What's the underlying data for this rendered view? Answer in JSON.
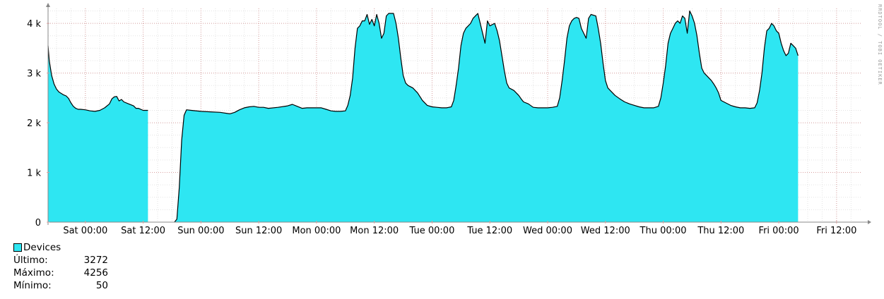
{
  "chart_data": {
    "type": "area",
    "title": "",
    "watermark": "RRDTOOL / TOBI OETIKER",
    "x_tick_labels": [
      "Sat 00:00",
      "Sat 12:00",
      "Sun 00:00",
      "Sun 12:00",
      "Mon 00:00",
      "Mon 12:00",
      "Tue 00:00",
      "Tue 12:00",
      "Wed 00:00",
      "Wed 12:00",
      "Thu 00:00",
      "Thu 12:00",
      "Fri 00:00",
      "Fri 12:00"
    ],
    "x_tick_hours": [
      0,
      12,
      24,
      36,
      48,
      60,
      72,
      84,
      96,
      108,
      120,
      132,
      144,
      156
    ],
    "xlim_hours": [
      -7.75,
      161.3
    ],
    "y_ticks": [
      0,
      1000,
      2000,
      3000,
      4000
    ],
    "y_tick_labels": [
      "0",
      "1 k",
      "2 k",
      "3 k",
      "4 k"
    ],
    "ylim": [
      0,
      4300
    ],
    "grid": true,
    "series": [
      {
        "name": "Devices",
        "color": "#2ee6f2",
        "gaps_hours": [
          [
            13.0,
            18.5
          ]
        ],
        "points": [
          [
            -7.75,
            3550
          ],
          [
            -7.5,
            3250
          ],
          [
            -7,
            2950
          ],
          [
            -6.5,
            2780
          ],
          [
            -6,
            2680
          ],
          [
            -5.5,
            2620
          ],
          [
            -5,
            2590
          ],
          [
            -4.5,
            2560
          ],
          [
            -4,
            2540
          ],
          [
            -3.5,
            2490
          ],
          [
            -3,
            2400
          ],
          [
            -2.5,
            2330
          ],
          [
            -2,
            2290
          ],
          [
            -1.5,
            2270
          ],
          [
            -1,
            2270
          ],
          [
            0,
            2260
          ],
          [
            1,
            2240
          ],
          [
            2,
            2230
          ],
          [
            3,
            2250
          ],
          [
            4,
            2300
          ],
          [
            5,
            2380
          ],
          [
            5.5,
            2480
          ],
          [
            6,
            2520
          ],
          [
            6.5,
            2530
          ],
          [
            7,
            2440
          ],
          [
            7.5,
            2470
          ],
          [
            8,
            2420
          ],
          [
            9,
            2380
          ],
          [
            10,
            2340
          ],
          [
            10.5,
            2290
          ],
          [
            11,
            2290
          ],
          [
            12,
            2250
          ],
          [
            13,
            2250
          ],
          [
            18.5,
            0
          ],
          [
            19,
            60
          ],
          [
            19.5,
            700
          ],
          [
            20,
            1650
          ],
          [
            20.5,
            2150
          ],
          [
            21,
            2260
          ],
          [
            22,
            2250
          ],
          [
            24,
            2230
          ],
          [
            26,
            2220
          ],
          [
            28,
            2210
          ],
          [
            30,
            2180
          ],
          [
            31,
            2210
          ],
          [
            32,
            2260
          ],
          [
            33,
            2300
          ],
          [
            34,
            2320
          ],
          [
            35,
            2330
          ],
          [
            36,
            2310
          ],
          [
            37,
            2310
          ],
          [
            38,
            2290
          ],
          [
            40,
            2310
          ],
          [
            42,
            2340
          ],
          [
            43,
            2370
          ],
          [
            44,
            2330
          ],
          [
            45,
            2290
          ],
          [
            46,
            2300
          ],
          [
            47,
            2300
          ],
          [
            48,
            2300
          ],
          [
            49,
            2300
          ],
          [
            50,
            2270
          ],
          [
            51,
            2240
          ],
          [
            52,
            2230
          ],
          [
            53,
            2230
          ],
          [
            54,
            2240
          ],
          [
            54.5,
            2350
          ],
          [
            55,
            2550
          ],
          [
            55.5,
            2900
          ],
          [
            56,
            3500
          ],
          [
            56.5,
            3900
          ],
          [
            57,
            3950
          ],
          [
            57.5,
            4050
          ],
          [
            58,
            4050
          ],
          [
            58.5,
            4180
          ],
          [
            59,
            3980
          ],
          [
            59.5,
            4080
          ],
          [
            60,
            3950
          ],
          [
            60.5,
            4180
          ],
          [
            61,
            4000
          ],
          [
            61.5,
            3700
          ],
          [
            62,
            3800
          ],
          [
            62.5,
            4150
          ],
          [
            63,
            4200
          ],
          [
            64,
            4200
          ],
          [
            64.5,
            4000
          ],
          [
            65,
            3700
          ],
          [
            65.5,
            3300
          ],
          [
            66,
            2950
          ],
          [
            66.5,
            2800
          ],
          [
            67,
            2750
          ],
          [
            68,
            2700
          ],
          [
            69,
            2600
          ],
          [
            70,
            2450
          ],
          [
            71,
            2350
          ],
          [
            72,
            2320
          ],
          [
            73,
            2310
          ],
          [
            74,
            2300
          ],
          [
            75,
            2300
          ],
          [
            76,
            2320
          ],
          [
            76.5,
            2450
          ],
          [
            77,
            2750
          ],
          [
            77.5,
            3100
          ],
          [
            78,
            3550
          ],
          [
            78.5,
            3800
          ],
          [
            79,
            3900
          ],
          [
            79.5,
            3950
          ],
          [
            80,
            4000
          ],
          [
            80.5,
            4100
          ],
          [
            81,
            4150
          ],
          [
            81.5,
            4200
          ],
          [
            82,
            4000
          ],
          [
            82.5,
            3800
          ],
          [
            83,
            3600
          ],
          [
            83.5,
            4050
          ],
          [
            84,
            3950
          ],
          [
            85,
            4000
          ],
          [
            85.5,
            3850
          ],
          [
            86,
            3650
          ],
          [
            86.5,
            3350
          ],
          [
            87,
            3050
          ],
          [
            87.5,
            2800
          ],
          [
            88,
            2700
          ],
          [
            89,
            2650
          ],
          [
            90,
            2550
          ],
          [
            90.5,
            2480
          ],
          [
            91,
            2420
          ],
          [
            92,
            2380
          ],
          [
            93,
            2310
          ],
          [
            94,
            2300
          ],
          [
            95,
            2300
          ],
          [
            96,
            2300
          ],
          [
            97,
            2310
          ],
          [
            98,
            2330
          ],
          [
            98.5,
            2500
          ],
          [
            99,
            2850
          ],
          [
            99.5,
            3250
          ],
          [
            100,
            3700
          ],
          [
            100.5,
            3950
          ],
          [
            101,
            4050
          ],
          [
            101.5,
            4100
          ],
          [
            102,
            4120
          ],
          [
            102.5,
            4100
          ],
          [
            103,
            3900
          ],
          [
            103.5,
            3800
          ],
          [
            104,
            3700
          ],
          [
            104.5,
            4100
          ],
          [
            105,
            4180
          ],
          [
            106,
            4150
          ],
          [
            106.5,
            3900
          ],
          [
            107,
            3600
          ],
          [
            107.5,
            3200
          ],
          [
            108,
            2850
          ],
          [
            108.5,
            2700
          ],
          [
            109,
            2650
          ],
          [
            110,
            2550
          ],
          [
            111,
            2480
          ],
          [
            112,
            2420
          ],
          [
            113,
            2380
          ],
          [
            114,
            2350
          ],
          [
            115,
            2320
          ],
          [
            116,
            2300
          ],
          [
            117,
            2300
          ],
          [
            118,
            2300
          ],
          [
            119,
            2330
          ],
          [
            119.5,
            2500
          ],
          [
            120,
            2800
          ],
          [
            120.5,
            3150
          ],
          [
            121,
            3600
          ],
          [
            121.5,
            3800
          ],
          [
            122,
            3900
          ],
          [
            122.5,
            4000
          ],
          [
            123,
            4050
          ],
          [
            123.5,
            4000
          ],
          [
            124,
            4150
          ],
          [
            124.5,
            4100
          ],
          [
            125,
            3800
          ],
          [
            125.5,
            4250
          ],
          [
            126,
            4150
          ],
          [
            126.5,
            4000
          ],
          [
            127,
            3750
          ],
          [
            127.5,
            3400
          ],
          [
            128,
            3100
          ],
          [
            128.5,
            3000
          ],
          [
            129,
            2950
          ],
          [
            130,
            2850
          ],
          [
            130.5,
            2780
          ],
          [
            131,
            2700
          ],
          [
            131.5,
            2600
          ],
          [
            132,
            2450
          ],
          [
            133,
            2400
          ],
          [
            134,
            2350
          ],
          [
            135,
            2320
          ],
          [
            136,
            2300
          ],
          [
            137,
            2300
          ],
          [
            138,
            2290
          ],
          [
            139,
            2300
          ],
          [
            139.5,
            2400
          ],
          [
            140,
            2650
          ],
          [
            140.5,
            3000
          ],
          [
            141,
            3500
          ],
          [
            141.5,
            3850
          ],
          [
            142,
            3900
          ],
          [
            142.5,
            4000
          ],
          [
            143,
            3950
          ],
          [
            143.5,
            3850
          ],
          [
            144,
            3800
          ],
          [
            144.5,
            3600
          ],
          [
            145,
            3450
          ],
          [
            145.5,
            3350
          ],
          [
            146,
            3400
          ],
          [
            146.5,
            3600
          ],
          [
            147,
            3550
          ],
          [
            147.5,
            3500
          ],
          [
            148,
            3350
          ]
        ]
      }
    ],
    "legend": {
      "series_name": "Devices",
      "stats": [
        {
          "label": "Último:",
          "value": "3272"
        },
        {
          "label": "Máximo:",
          "value": "4256"
        },
        {
          "label": "Mínimo:",
          "value": "50"
        }
      ]
    }
  }
}
